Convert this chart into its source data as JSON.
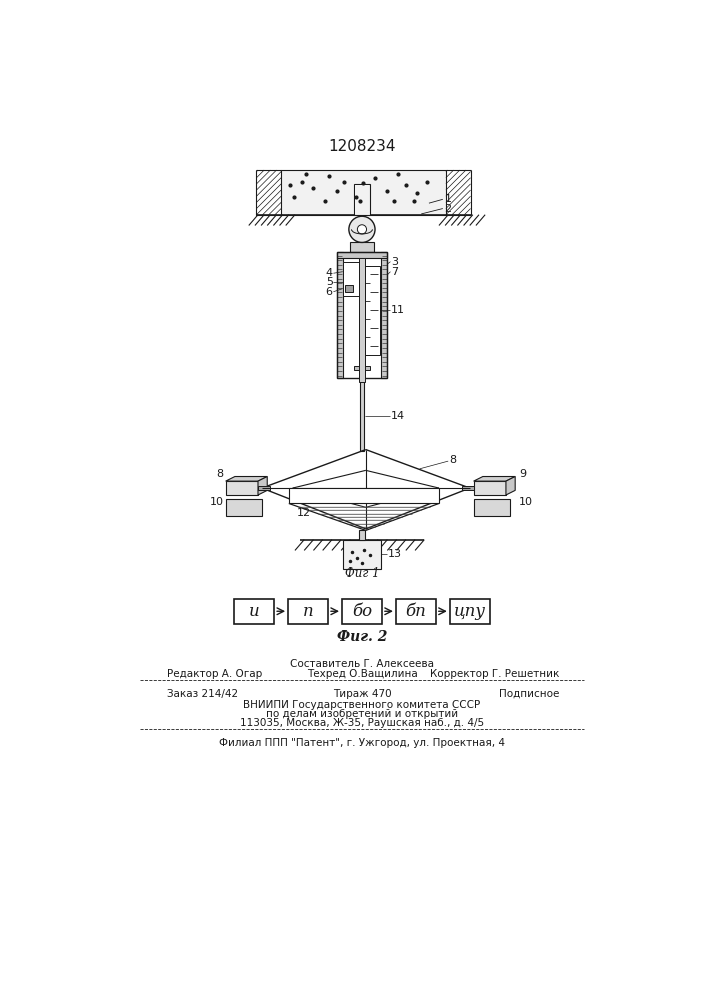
{
  "patent_number": "1208234",
  "fig1_label": "Фиг 1",
  "fig2_label": "Фиг. 2",
  "block_labels": [
    "и",
    "п",
    "бо",
    "бп",
    "цпу"
  ],
  "footer_line0": "Составитель Г. Алексеева",
  "footer_editor": "Редактор А. Огар",
  "footer_techred": "Техред О.Ващилина",
  "footer_corrector": "Корректор Г. Решетник",
  "footer_order": "Заказ 214/42",
  "footer_tirazh": "Тираж 470",
  "footer_podp": "Подписное",
  "footer_vniipи": "ВНИИПИ Государственного комитета СССР",
  "footer_po": "по делам изобретений и открытий",
  "footer_addr": "113035, Москва, Ж-35, Раушская наб., д. 4/5",
  "footer_filial": "Филиал ППП \"Патент\", г. Ужгород, ул. Проектная, 4",
  "bg_color": "#ffffff",
  "line_color": "#1a1a1a"
}
